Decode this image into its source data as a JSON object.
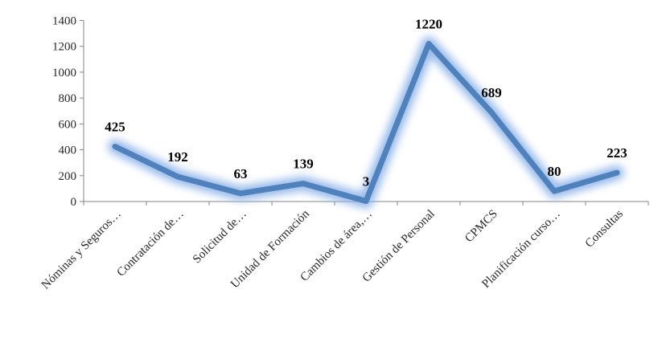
{
  "chart_data": {
    "type": "line",
    "categories": [
      "Nóminas y Seguros…",
      "Contratación de…",
      "Solicitud de…",
      "Unidad de Formación",
      "Cambios de área,…",
      "Gestión de Personal",
      "CPMCS",
      "Planificación curso…",
      "Consultas"
    ],
    "series": [
      {
        "values": [
          425,
          192,
          63,
          139,
          3,
          1220,
          689,
          80,
          223
        ]
      }
    ],
    "data_labels": [
      "425",
      "192",
      "63",
      "139",
      "3",
      "1220",
      "689",
      "80",
      "223"
    ],
    "yticks": [
      "0",
      "200",
      "400",
      "600",
      "800",
      "1000",
      "1200",
      "1400"
    ],
    "ylim": [
      0,
      1400
    ],
    "grid": false,
    "legend": "none",
    "title": "",
    "xlabel": "",
    "ylabel": "",
    "colors": {
      "line": "#4f81bd",
      "glow": "#8db4e8",
      "axis": "#868686"
    }
  }
}
